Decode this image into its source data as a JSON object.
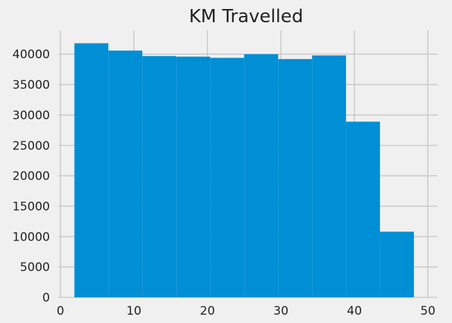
{
  "chart_data": {
    "type": "bar",
    "title": "KM Travelled",
    "xlabel": "",
    "ylabel": "",
    "xlim": [
      -0.3,
      51.3
    ],
    "ylim": [
      0,
      43900
    ],
    "xticks": [
      0,
      10,
      20,
      30,
      40,
      50
    ],
    "yticks": [
      0,
      5000,
      10000,
      15000,
      20000,
      25000,
      30000,
      35000,
      40000
    ],
    "grid": true,
    "legend": "none",
    "bin_edges": [
      1.9,
      6.52,
      11.14,
      15.76,
      20.38,
      25.0,
      29.62,
      34.24,
      38.86,
      43.48,
      48.1
    ],
    "counts": [
      41800,
      40600,
      39700,
      39600,
      39400,
      40000,
      39200,
      39800,
      28900,
      10800
    ]
  },
  "colors": {
    "background": "#f0f0f0",
    "bar": "#008fd5",
    "grid": "#cbcbcb",
    "text": "#222222"
  }
}
